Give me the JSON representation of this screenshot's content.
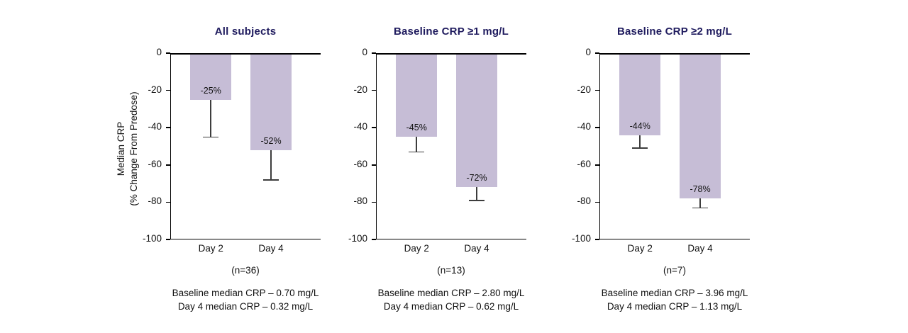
{
  "figure": {
    "background": "#ffffff"
  },
  "colors": {
    "bar_fill": "#c6bdd6",
    "title_text": "#1f1b5e",
    "axis": "#000000",
    "error_bar": "#3d3d3d",
    "text": "#111111"
  },
  "y_axis": {
    "label_line1": "Median CRP",
    "label_line2": "(% Change From Predose)",
    "ticks": [
      0,
      -20,
      -40,
      -60,
      -80,
      -100
    ],
    "range": [
      -100,
      0
    ]
  },
  "chart_data": [
    {
      "type": "bar",
      "title": "All subjects",
      "categories": [
        "Day 2",
        "Day 4"
      ],
      "values": [
        -25,
        -52
      ],
      "error_whisker_to": [
        -45,
        -68
      ],
      "bar_labels": [
        "-25%",
        "-52%"
      ],
      "n_label": "(n=36)",
      "footnotes": [
        "Baseline median CRP – 0.70 mg/L",
        "Day 4 median CRP – 0.32 mg/L"
      ],
      "ylabel": "Median CRP (% Change From Predose)",
      "ylim": [
        -100,
        0
      ],
      "yticks": [
        0,
        -20,
        -40,
        -60,
        -80,
        -100
      ],
      "grid": false,
      "legend": "none"
    },
    {
      "type": "bar",
      "title": "Baseline CRP ≥1 mg/L",
      "categories": [
        "Day 2",
        "Day 4"
      ],
      "values": [
        -45,
        -72
      ],
      "error_whisker_to": [
        -53,
        -79
      ],
      "bar_labels": [
        "-45%",
        "-72%"
      ],
      "n_label": "(n=13)",
      "footnotes": [
        "Baseline median CRP – 2.80 mg/L",
        "Day 4 median CRP – 0.62 mg/L"
      ],
      "ylabel": "Median CRP (% Change From Predose)",
      "ylim": [
        -100,
        0
      ],
      "yticks": [
        0,
        -20,
        -40,
        -60,
        -80,
        -100
      ],
      "grid": false,
      "legend": "none"
    },
    {
      "type": "bar",
      "title": "Baseline CRP ≥2 mg/L",
      "categories": [
        "Day 2",
        "Day 4"
      ],
      "values": [
        -44,
        -78
      ],
      "error_whisker_to": [
        -51,
        -83
      ],
      "bar_labels": [
        "-44%",
        "-78%"
      ],
      "n_label": "(n=7)",
      "footnotes": [
        "Baseline median CRP – 3.96 mg/L",
        "Day 4 median CRP – 1.13 mg/L"
      ],
      "ylabel": "Median CRP (% Change From Predose)",
      "ylim": [
        -100,
        0
      ],
      "yticks": [
        0,
        -20,
        -40,
        -60,
        -80,
        -100
      ],
      "grid": false,
      "legend": "none"
    }
  ]
}
